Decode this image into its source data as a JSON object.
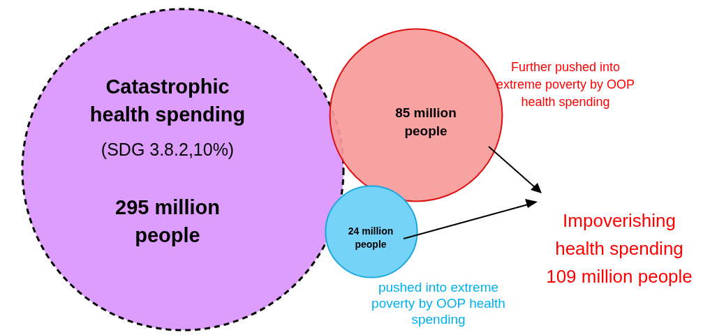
{
  "chart_data": {
    "type": "other",
    "categories": [
      "Catastrophic health spending",
      "Further pushed into extreme poverty by OOP health spending",
      "pushed into extreme poverty by OOP health spending"
    ],
    "values": [
      295,
      85,
      24
    ],
    "value_labels": [
      "295 million people",
      "85 million people",
      "24 million people"
    ],
    "colors": [
      "#dd9dfd",
      "#f99a9a",
      "#75d3f7"
    ],
    "annotations": [
      "(SDG 3.8.2,10%)",
      "Impoverishing health spending 109 million people"
    ]
  }
}
